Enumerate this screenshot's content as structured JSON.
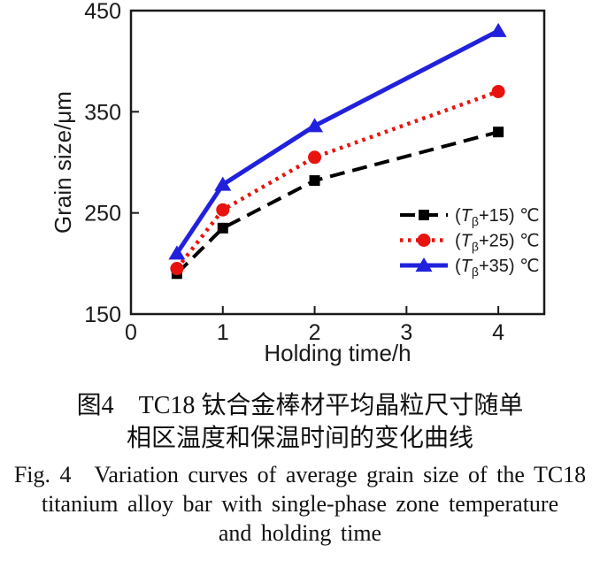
{
  "figure": {
    "caption_zh": [
      "图4　TC18 钛合金棒材平均晶粒尺寸随单",
      "相区温度和保温时间的变化曲线"
    ],
    "caption_en": [
      "Fig. 4　Variation curves of average grain size of the TC18",
      "titanium alloy bar with single-phase zone temperature",
      "and holding time"
    ]
  },
  "chart_data": {
    "type": "line",
    "title": "",
    "xlabel": "Holding time/h",
    "ylabel": "Grain size/μm",
    "xlim": [
      0,
      4.5
    ],
    "ylim": [
      150,
      450
    ],
    "xticks": [
      0,
      1,
      2,
      3,
      4
    ],
    "yticks": [
      150,
      250,
      350,
      450
    ],
    "grid": false,
    "legend_position": "inside-right-lower",
    "axis_color": "#1a1a1a",
    "x": [
      0.5,
      1,
      2,
      4
    ],
    "series": [
      {
        "name": "(Tβ+15) ℃",
        "label_parts": {
          "pre": "(",
          "var": "T",
          "sub": "β",
          "post": "+15) ℃"
        },
        "values": [
          190,
          235,
          282,
          330
        ],
        "color": "#000000",
        "line_style": "dashed",
        "marker": "square"
      },
      {
        "name": "(Tβ+25) ℃",
        "label_parts": {
          "pre": "(",
          "var": "T",
          "sub": "β",
          "post": "+25) ℃"
        },
        "values": [
          195,
          253,
          305,
          370
        ],
        "color": "#e8130f",
        "line_style": "dotted",
        "marker": "circle"
      },
      {
        "name": "(Tβ+35) ℃",
        "label_parts": {
          "pre": "(",
          "var": "T",
          "sub": "β",
          "post": "+35) ℃"
        },
        "values": [
          210,
          278,
          336,
          430
        ],
        "color": "#2121dd",
        "line_style": "solid",
        "marker": "triangle"
      }
    ]
  }
}
